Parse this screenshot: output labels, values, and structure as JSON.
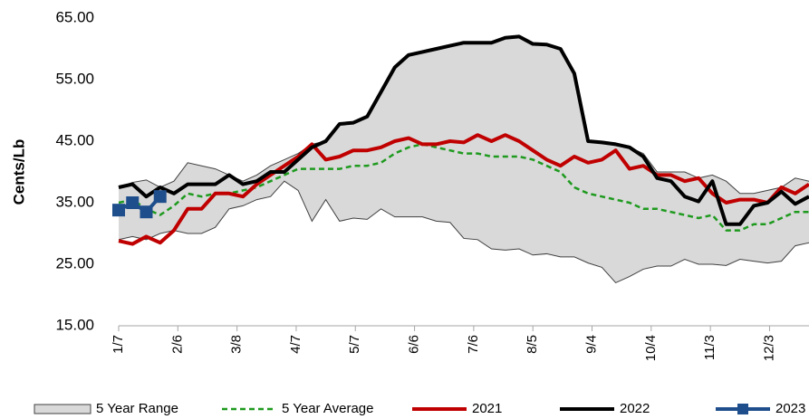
{
  "chart_data": {
    "type": "line",
    "y_label": "Cents/Lb",
    "x": [
      7,
      14,
      21,
      28,
      35,
      42,
      49,
      56,
      63,
      70,
      77,
      84,
      91,
      98,
      105,
      112,
      119,
      126,
      133,
      140,
      147,
      154,
      161,
      168,
      175,
      182,
      189,
      196,
      203,
      210,
      217,
      224,
      231,
      238,
      245,
      252,
      259,
      266,
      273,
      280,
      287,
      294,
      301,
      308,
      315,
      322,
      329,
      336,
      343,
      350,
      357
    ],
    "xlim": [
      7,
      357
    ],
    "xticks": [
      {
        "value": 7,
        "label": "1/7"
      },
      {
        "value": 37,
        "label": "2/6"
      },
      {
        "value": 67,
        "label": "3/8"
      },
      {
        "value": 97,
        "label": "4/7"
      },
      {
        "value": 127,
        "label": "5/7"
      },
      {
        "value": 157,
        "label": "6/6"
      },
      {
        "value": 187,
        "label": "7/6"
      },
      {
        "value": 217,
        "label": "8/5"
      },
      {
        "value": 247,
        "label": "9/4"
      },
      {
        "value": 277,
        "label": "10/4"
      },
      {
        "value": 307,
        "label": "11/3"
      },
      {
        "value": 337,
        "label": "12/3"
      }
    ],
    "ylim": [
      15,
      65
    ],
    "yticks": [
      {
        "value": 15,
        "label": "15.00"
      },
      {
        "value": 25,
        "label": "25.00"
      },
      {
        "value": 35,
        "label": "35.00"
      },
      {
        "value": 45,
        "label": "45.00"
      },
      {
        "value": 55,
        "label": "55.00"
      },
      {
        "value": 65,
        "label": "65.00"
      }
    ],
    "grid": false,
    "legend": "bottom",
    "range": {
      "name": "5 Year Range",
      "color": "#d9d9d9",
      "edge_color": "#404040",
      "upper": [
        37.5,
        38.3,
        38.7,
        37.5,
        38.5,
        41.5,
        41,
        40.5,
        39.5,
        38.5,
        39.5,
        41,
        42,
        43,
        44.5,
        45,
        47.8,
        48,
        49,
        53,
        57,
        59,
        59.5,
        60,
        60.5,
        61,
        61,
        61,
        61.8,
        62,
        60.8,
        60.7,
        60,
        56,
        45,
        44.8,
        44.5,
        44,
        43,
        40,
        40,
        40,
        39,
        39.5,
        38.5,
        36.5,
        36.5,
        37,
        37.5,
        39,
        38.5
      ],
      "lower": [
        29,
        29.5,
        29,
        30,
        30.5,
        30,
        30,
        31,
        34,
        34.5,
        35.5,
        36,
        38.5,
        37,
        32,
        35.5,
        32,
        32.5,
        32.3,
        34,
        32.7,
        32.7,
        32.7,
        32,
        31.8,
        29.2,
        29,
        27.5,
        27.3,
        27.5,
        26.5,
        26.7,
        26.2,
        26.2,
        25.2,
        24.5,
        22,
        23,
        24.2,
        24.7,
        24.7,
        25.8,
        25,
        25,
        24.8,
        25.8,
        25.5,
        25.2,
        25.5,
        28,
        28.5
      ]
    },
    "series": [
      {
        "name": "5 Year Average",
        "color": "#1e9a1e",
        "dashed": true,
        "values": [
          35,
          35.5,
          34,
          33,
          34.5,
          36.5,
          36,
          36.5,
          36.5,
          37,
          37.5,
          38.5,
          39.5,
          40.5,
          40.5,
          40.5,
          40.5,
          41,
          41,
          41.5,
          43,
          44,
          44.5,
          44,
          43.5,
          43,
          43,
          42.5,
          42.5,
          42.5,
          42,
          41,
          40,
          37.5,
          36.5,
          36,
          35.5,
          35,
          34,
          34,
          33.5,
          33,
          32.5,
          33,
          30.5,
          30.5,
          31.5,
          31.5,
          32.5,
          33.5,
          33.5
        ]
      },
      {
        "name": "2021",
        "color": "#c00000",
        "values": [
          28.8,
          28.3,
          29.5,
          28.5,
          30.5,
          34,
          34,
          36.5,
          36.5,
          36,
          38,
          39.5,
          41,
          42.5,
          44.5,
          42,
          42.5,
          43.5,
          43.5,
          44,
          45,
          45.5,
          44.5,
          44.5,
          45,
          44.8,
          46,
          45,
          46,
          45,
          43.5,
          42,
          41,
          42.5,
          41.5,
          42,
          43.5,
          40.5,
          41,
          39.5,
          39.5,
          38.5,
          39,
          36.5,
          35,
          35.5,
          35.5,
          35,
          37.5,
          36.5,
          38
        ]
      },
      {
        "name": "2022",
        "color": "#000000",
        "values": [
          37.5,
          38,
          36,
          37.5,
          36.5,
          38,
          38,
          38,
          39.5,
          38,
          38.5,
          40,
          40,
          42,
          44,
          45,
          47.8,
          48,
          49,
          53,
          57,
          59,
          59.5,
          60,
          60.5,
          61,
          61,
          61,
          61.8,
          62,
          60.8,
          60.7,
          60,
          56,
          45,
          44.8,
          44.5,
          44,
          42.5,
          39,
          38.5,
          36,
          35.2,
          38.5,
          31.5,
          31.5,
          34.5,
          35,
          36.8,
          34.8,
          36
        ]
      },
      {
        "name": "2023",
        "color": "#1f4e8c",
        "markers": true,
        "values": [
          33.8,
          35,
          33.5,
          36,
          null,
          null,
          null,
          null,
          null,
          null,
          null,
          null,
          null,
          null,
          null,
          null,
          null,
          null,
          null,
          null,
          null,
          null,
          null,
          null,
          null,
          null,
          null,
          null,
          null,
          null,
          null,
          null,
          null,
          null,
          null,
          null,
          null,
          null,
          null,
          null,
          null,
          null,
          null,
          null,
          null,
          null,
          null,
          null,
          null,
          null,
          null
        ]
      }
    ]
  }
}
